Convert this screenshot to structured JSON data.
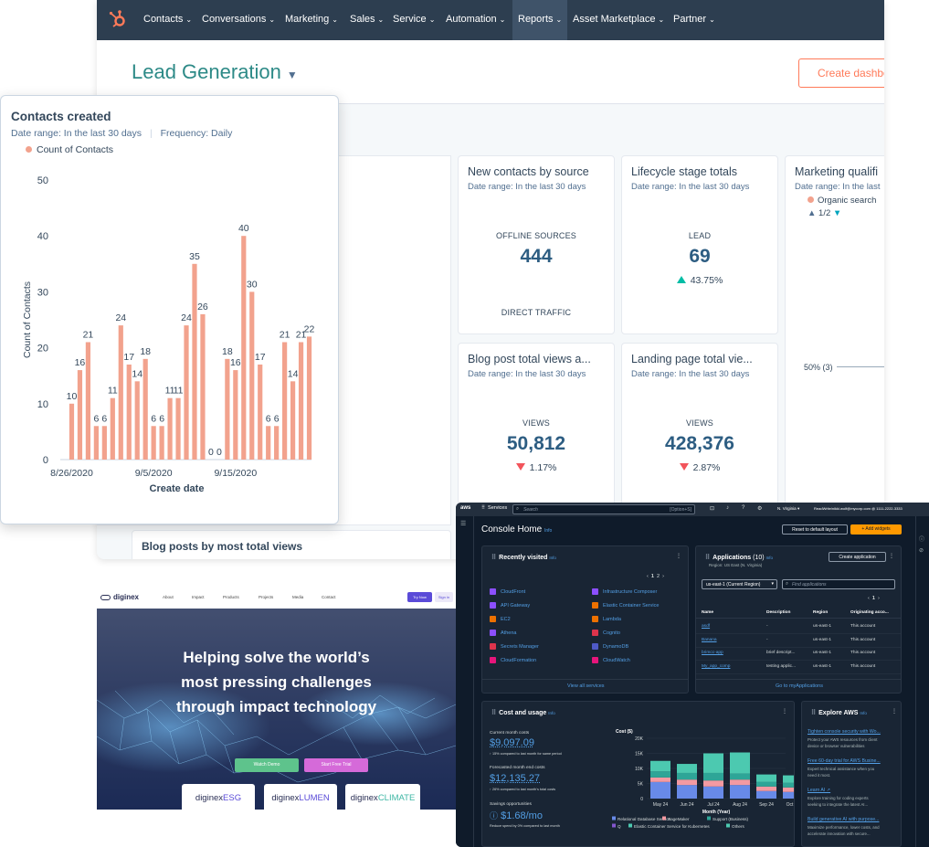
{
  "hubspot": {
    "nav": [
      {
        "label": "Contacts"
      },
      {
        "label": "Conversations"
      },
      {
        "label": "Marketing"
      },
      {
        "label": "Sales"
      },
      {
        "label": "Service"
      },
      {
        "label": "Automation"
      },
      {
        "label": "Reports"
      },
      {
        "label": "Asset Marketplace"
      },
      {
        "label": "Partner"
      }
    ],
    "dashboard_title": "Lead Generation",
    "create_button": "Create dashbo",
    "cards": {
      "new_contacts": {
        "title": "New contacts by source",
        "date_range": "Date range:  In the last 30 days",
        "label_top": "OFFLINE SOURCES",
        "value": "444",
        "label_bottom": "DIRECT TRAFFIC"
      },
      "lifecycle": {
        "title": "Lifecycle stage totals",
        "date_range": "Date range:  In the last 30 days",
        "label": "LEAD",
        "value": "69",
        "change": "43.75%"
      },
      "marketing": {
        "title": "Marketing qualifi",
        "date_range": "Date range:  In the last",
        "legend": "Organic search",
        "pager": "1/2",
        "pie_label": "50% (3)"
      },
      "blog_views": {
        "title": "Blog post total views a...",
        "date_range": "Date range:  In the last 30 days",
        "label": "VIEWS",
        "value": "50,812",
        "change": "1.17%"
      },
      "landing": {
        "title": "Landing page total vie...",
        "date_range": "Date range:  In the last 30 days",
        "label": "VIEWS",
        "value": "428,376",
        "change": "2.87%"
      },
      "blog_most": {
        "title": "Blog posts by most total views"
      }
    }
  },
  "contacts_popup": {
    "title": "Contacts created",
    "date_range": "Date range:  In the last 30 days",
    "frequency": "Frequency:  Daily",
    "legend": "Count of Contacts",
    "ylabel": "Count of Contacts",
    "xlabel": "Create date"
  },
  "chart_data": {
    "type": "bar",
    "title": "Contacts created",
    "xlabel": "Create date",
    "ylabel": "Count of Contacts",
    "ylim": [
      0,
      50
    ],
    "yticks": [
      0,
      10,
      20,
      30,
      40,
      50
    ],
    "xtick_labels": [
      "8/26/2020",
      "9/5/2020",
      "9/15/2020"
    ],
    "series": [
      {
        "name": "Count of Contacts",
        "color": "#f2a28d",
        "values": [
          10,
          16,
          21,
          6,
          6,
          11,
          24,
          17,
          14,
          18,
          6,
          6,
          11,
          11,
          24,
          35,
          26,
          0,
          0,
          18,
          16,
          40,
          30,
          17,
          6,
          6,
          21,
          14,
          21,
          22
        ]
      }
    ]
  },
  "diginex": {
    "brand": "diginex",
    "nav": [
      "About",
      "Impact",
      "Products",
      "Projects",
      "Media",
      "Contact"
    ],
    "try_now": "Try Now",
    "sign_in": "Sign in",
    "hero_lines": [
      "Helping solve the world’s",
      "most pressing challenges",
      "through impact technology"
    ],
    "watch_demo": "Watch Demo",
    "start_trial": "Start Free Trial",
    "products": [
      {
        "name": "diginex",
        "suffix": "ESG"
      },
      {
        "name": "diginex",
        "suffix": "LUMEN"
      },
      {
        "name": "diginex",
        "suffix": "CLIMATE"
      }
    ]
  },
  "aws": {
    "logo": "aws",
    "services": "Services",
    "search_placeholder": "Search",
    "search_shortcut": "[Option+S]",
    "region": "N. Virginia",
    "account": "ReadWrite/nikki.wolf@mycorp.com @ 1111-2222-3333",
    "console_home": "Console Home",
    "info": "Info",
    "reset_layout": "Reset to default layout",
    "add_widgets": "+ Add widgets",
    "recently_visited": {
      "title": "Recently visited",
      "left": [
        "CloudFront",
        "API Gateway",
        "EC2",
        "Athena",
        "Secrets Manager",
        "CloudFormation"
      ],
      "right": [
        "Infrastructure Composer",
        "Elastic Container Service",
        "Lambda",
        "Cognito",
        "DynamoDB",
        "CloudWatch"
      ],
      "page": "1",
      "page2": "2",
      "view_all": "View all services"
    },
    "applications": {
      "title": "Applications",
      "count": "(10)",
      "region_note": "Region: US East (N. Virginia)",
      "create": "Create application",
      "region_select": "us-east-1 (Current Region)",
      "find": "Find applications",
      "page": "1",
      "headers": [
        "Name",
        "Description",
        "Region",
        "Originating acco..."
      ],
      "rows": [
        [
          "asdf",
          "-",
          "us-east-1",
          "This account"
        ],
        [
          "Banana",
          "-",
          "us-east-1",
          "This account"
        ],
        [
          "brimcc-app",
          "brief descript...",
          "us-east-1",
          "This account"
        ],
        [
          "My_app_comp",
          "testing applic...",
          "us-east-1",
          "This account"
        ]
      ],
      "go": "Go to myApplications"
    },
    "cost": {
      "title": "Cost and usage",
      "current_label": "Current month costs",
      "current_value": "$9,097.09",
      "current_note": "↑ 15% compared to last month for same period",
      "forecast_label": "Forecasted month end costs",
      "forecast_value": "$12,135.27",
      "forecast_note": "↑ 26% compared to last month's total costs",
      "savings_label": "Savings opportunities",
      "savings_value": "$1.68/mo",
      "savings_note": "Reduce spend by 0% compared to last month",
      "chart_title": "Cost ($)",
      "yticks": [
        "20K",
        "15K",
        "10K",
        "5K",
        "0"
      ],
      "months": [
        "May 24",
        "Jun 24",
        "Jul 24",
        "Aug 24",
        "Sep 24",
        "Oct 24"
      ],
      "xlabel": "Month (Year)",
      "legend": [
        "Relational Database Service",
        "SageMaker",
        "Support (Business)",
        "Q",
        "Elastic Container Service for Kubernetes",
        "Others"
      ]
    },
    "explore": {
      "title": "Explore AWS",
      "items": [
        {
          "link": "Tighten console security with Wo...",
          "desc1": "Protect your AWS resources from client",
          "desc2": "device or browser vulnerabilities"
        },
        {
          "link": "Free 60-day trial for AWS Busine...",
          "desc1": "Expert technical assistance when you",
          "desc2": "need it most."
        },
        {
          "link": "Learn AI ↗",
          "desc1": "Explore training for coding experts",
          "desc2": "seeking to integrate the latest AI..."
        },
        {
          "link": "Build generative AI with purpose...",
          "desc1": "Maximize performance, lower costs, and",
          "desc2": "accelerate innovation with secure..."
        }
      ]
    }
  }
}
